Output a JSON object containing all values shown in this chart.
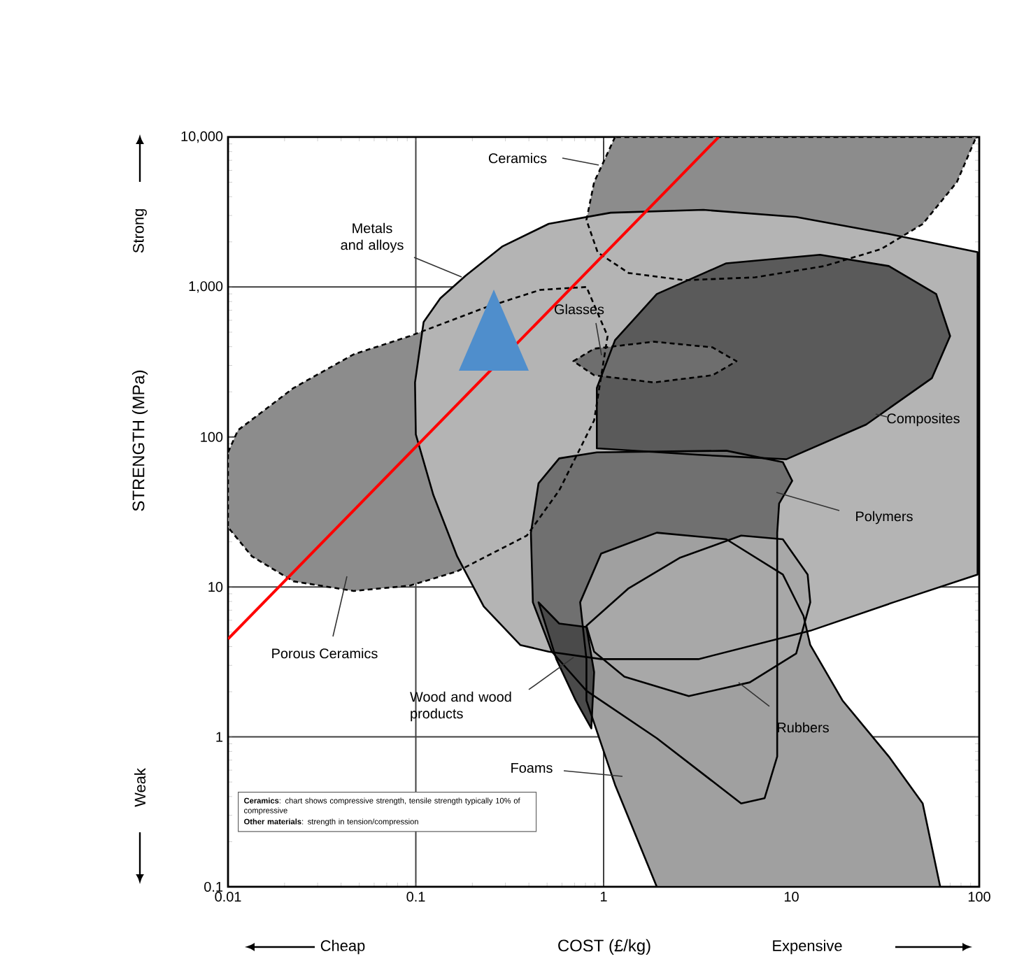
{
  "chart_data": {
    "type": "area",
    "xlabel": "COST (£/kg)",
    "ylabel": "STRENGTH (MPa)",
    "log": "xy",
    "grid": true,
    "xlim": [
      0.01,
      100
    ],
    "ylim": [
      0.1,
      10000
    ],
    "xticks": [
      0.01,
      0.1,
      1,
      10,
      100
    ],
    "yticks": [
      0.1,
      1,
      10,
      100,
      {
        "value": 1000,
        "label": "1,000"
      },
      {
        "value": 10000,
        "label": "10,000"
      }
    ],
    "annotations": [
      "Strong",
      "Weak",
      "Cheap",
      "Expensive",
      "**Ceramics**: chart shows compressive strength, tensile strength typically 10% of compressive",
      "**Other materials**: strength in tension/compression"
    ],
    "series": [
      {
        "name": "Ceramics",
        "color": "#8c8c8c",
        "line_style": "dashed",
        "x": [
          1.15,
          0.89,
          0.81,
          0.93,
          1.36,
          2.7,
          6.4,
          15,
          30,
          50,
          76,
          95,
          100
        ],
        "values": [
          10000,
          5000,
          2800,
          1700,
          1240,
          1110,
          1160,
          1380,
          1790,
          2630,
          5000,
          9600,
          10000
        ]
      },
      {
        "name": "Porous Ceramics",
        "color": "#8c8c8c",
        "line_style": "dashed",
        "x": [
          0.01,
          0.0113,
          0.0223,
          0.0467,
          0.093,
          0.23,
          0.46,
          0.81,
          1.05,
          0.89,
          0.58,
          0.39,
          0.166,
          0.093,
          0.0467,
          0.0223,
          0.0134,
          0.01
        ],
        "values": [
          79,
          111,
          212,
          356,
          471,
          724,
          957,
          1000,
          471,
          129,
          44,
          22,
          12.7,
          10.2,
          9.4,
          10.9,
          16,
          25
        ]
      },
      {
        "name": "Metals and alloys",
        "color": "#b4b4b4",
        "line_style": "solid",
        "x": [
          0.099,
          0.11,
          0.135,
          0.184,
          0.29,
          0.51,
          1.09,
          3.4,
          10.6,
          33,
          98,
          98,
          35,
          12.6,
          3.2,
          0.97,
          0.51,
          0.36,
          0.23,
          0.166,
          0.124,
          0.1
        ],
        "values": [
          231,
          583,
          841,
          1190,
          1870,
          2640,
          3130,
          3270,
          2930,
          2260,
          1710,
          12.1,
          7.9,
          5.1,
          3.3,
          3.3,
          3.7,
          4.1,
          7.4,
          16,
          41,
          104
        ]
      },
      {
        "name": "Composites",
        "color": "#5a5a5a",
        "line_style": "solid",
        "x": [
          0.92,
          0.92,
          1.15,
          1.92,
          4.5,
          14.2,
          33,
          59,
          70,
          56,
          25,
          9.4,
          3.2
        ],
        "values": [
          84,
          212,
          442,
          898,
          1440,
          1640,
          1380,
          898,
          471,
          247,
          121,
          71,
          76
        ]
      },
      {
        "name": "Glasses",
        "color": "#6e6e6e",
        "line_style": "dashed",
        "x": [
          0.69,
          0.89,
          1.85,
          3.8,
          5.1,
          3.8,
          1.85,
          0.89
        ],
        "values": [
          320,
          388,
          432,
          396,
          320,
          258,
          231,
          258
        ]
      },
      {
        "name": "Polymers",
        "color": "#707070",
        "line_style": "solid",
        "x": [
          0.45,
          0.58,
          0.92,
          4.5,
          9.0,
          10.1,
          8.6,
          8.4,
          8.4,
          7.2,
          5.4,
          1.92,
          0.81,
          0.53,
          0.42,
          0.41
        ],
        "values": [
          49,
          72,
          79,
          81,
          68,
          51,
          36,
          23,
          0.74,
          0.39,
          0.36,
          0.98,
          2.03,
          3.7,
          7.9,
          23
        ]
      },
      {
        "name": "Foams",
        "color": "#a0a0a0",
        "line_style": "solid",
        "x": [
          0.81,
          0.75,
          0.97,
          1.92,
          4.5,
          9.0,
          11.6,
          12.6,
          18.7,
          33,
          50,
          62,
          1.92,
          1.15,
          0.81
        ],
        "values": [
          3.3,
          7.9,
          16.7,
          23,
          20.8,
          12.1,
          6.4,
          4.1,
          1.75,
          0.74,
          0.36,
          0.1,
          0.1,
          0.48,
          1.75
        ]
      },
      {
        "name": "Wood and wood products",
        "color": "#4a4a4a",
        "line_style": "solid",
        "x": [
          0.45,
          0.58,
          0.81,
          0.89,
          0.86,
          0.71,
          0.56
        ],
        "values": [
          7.9,
          5.7,
          5.4,
          2.7,
          1.14,
          1.75,
          3.3
        ]
      },
      {
        "name": "Rubbers",
        "color": "#a8a8a8",
        "line_style": "solid",
        "x": [
          0.81,
          1.36,
          2.56,
          5.4,
          9.0,
          12.2,
          12.6,
          10.6,
          6.0,
          2.84,
          1.29,
          0.89
        ],
        "values": [
          5.5,
          9.8,
          15.7,
          22,
          20.8,
          12.1,
          7.9,
          3.6,
          2.31,
          1.87,
          2.52,
          3.7
        ]
      },
      {
        "type": "line",
        "color": "#ff0000",
        "line_style": "solid",
        "x": [
          0.01,
          4.1
        ],
        "values": [
          4.5,
          10000
        ]
      }
    ]
  }
}
